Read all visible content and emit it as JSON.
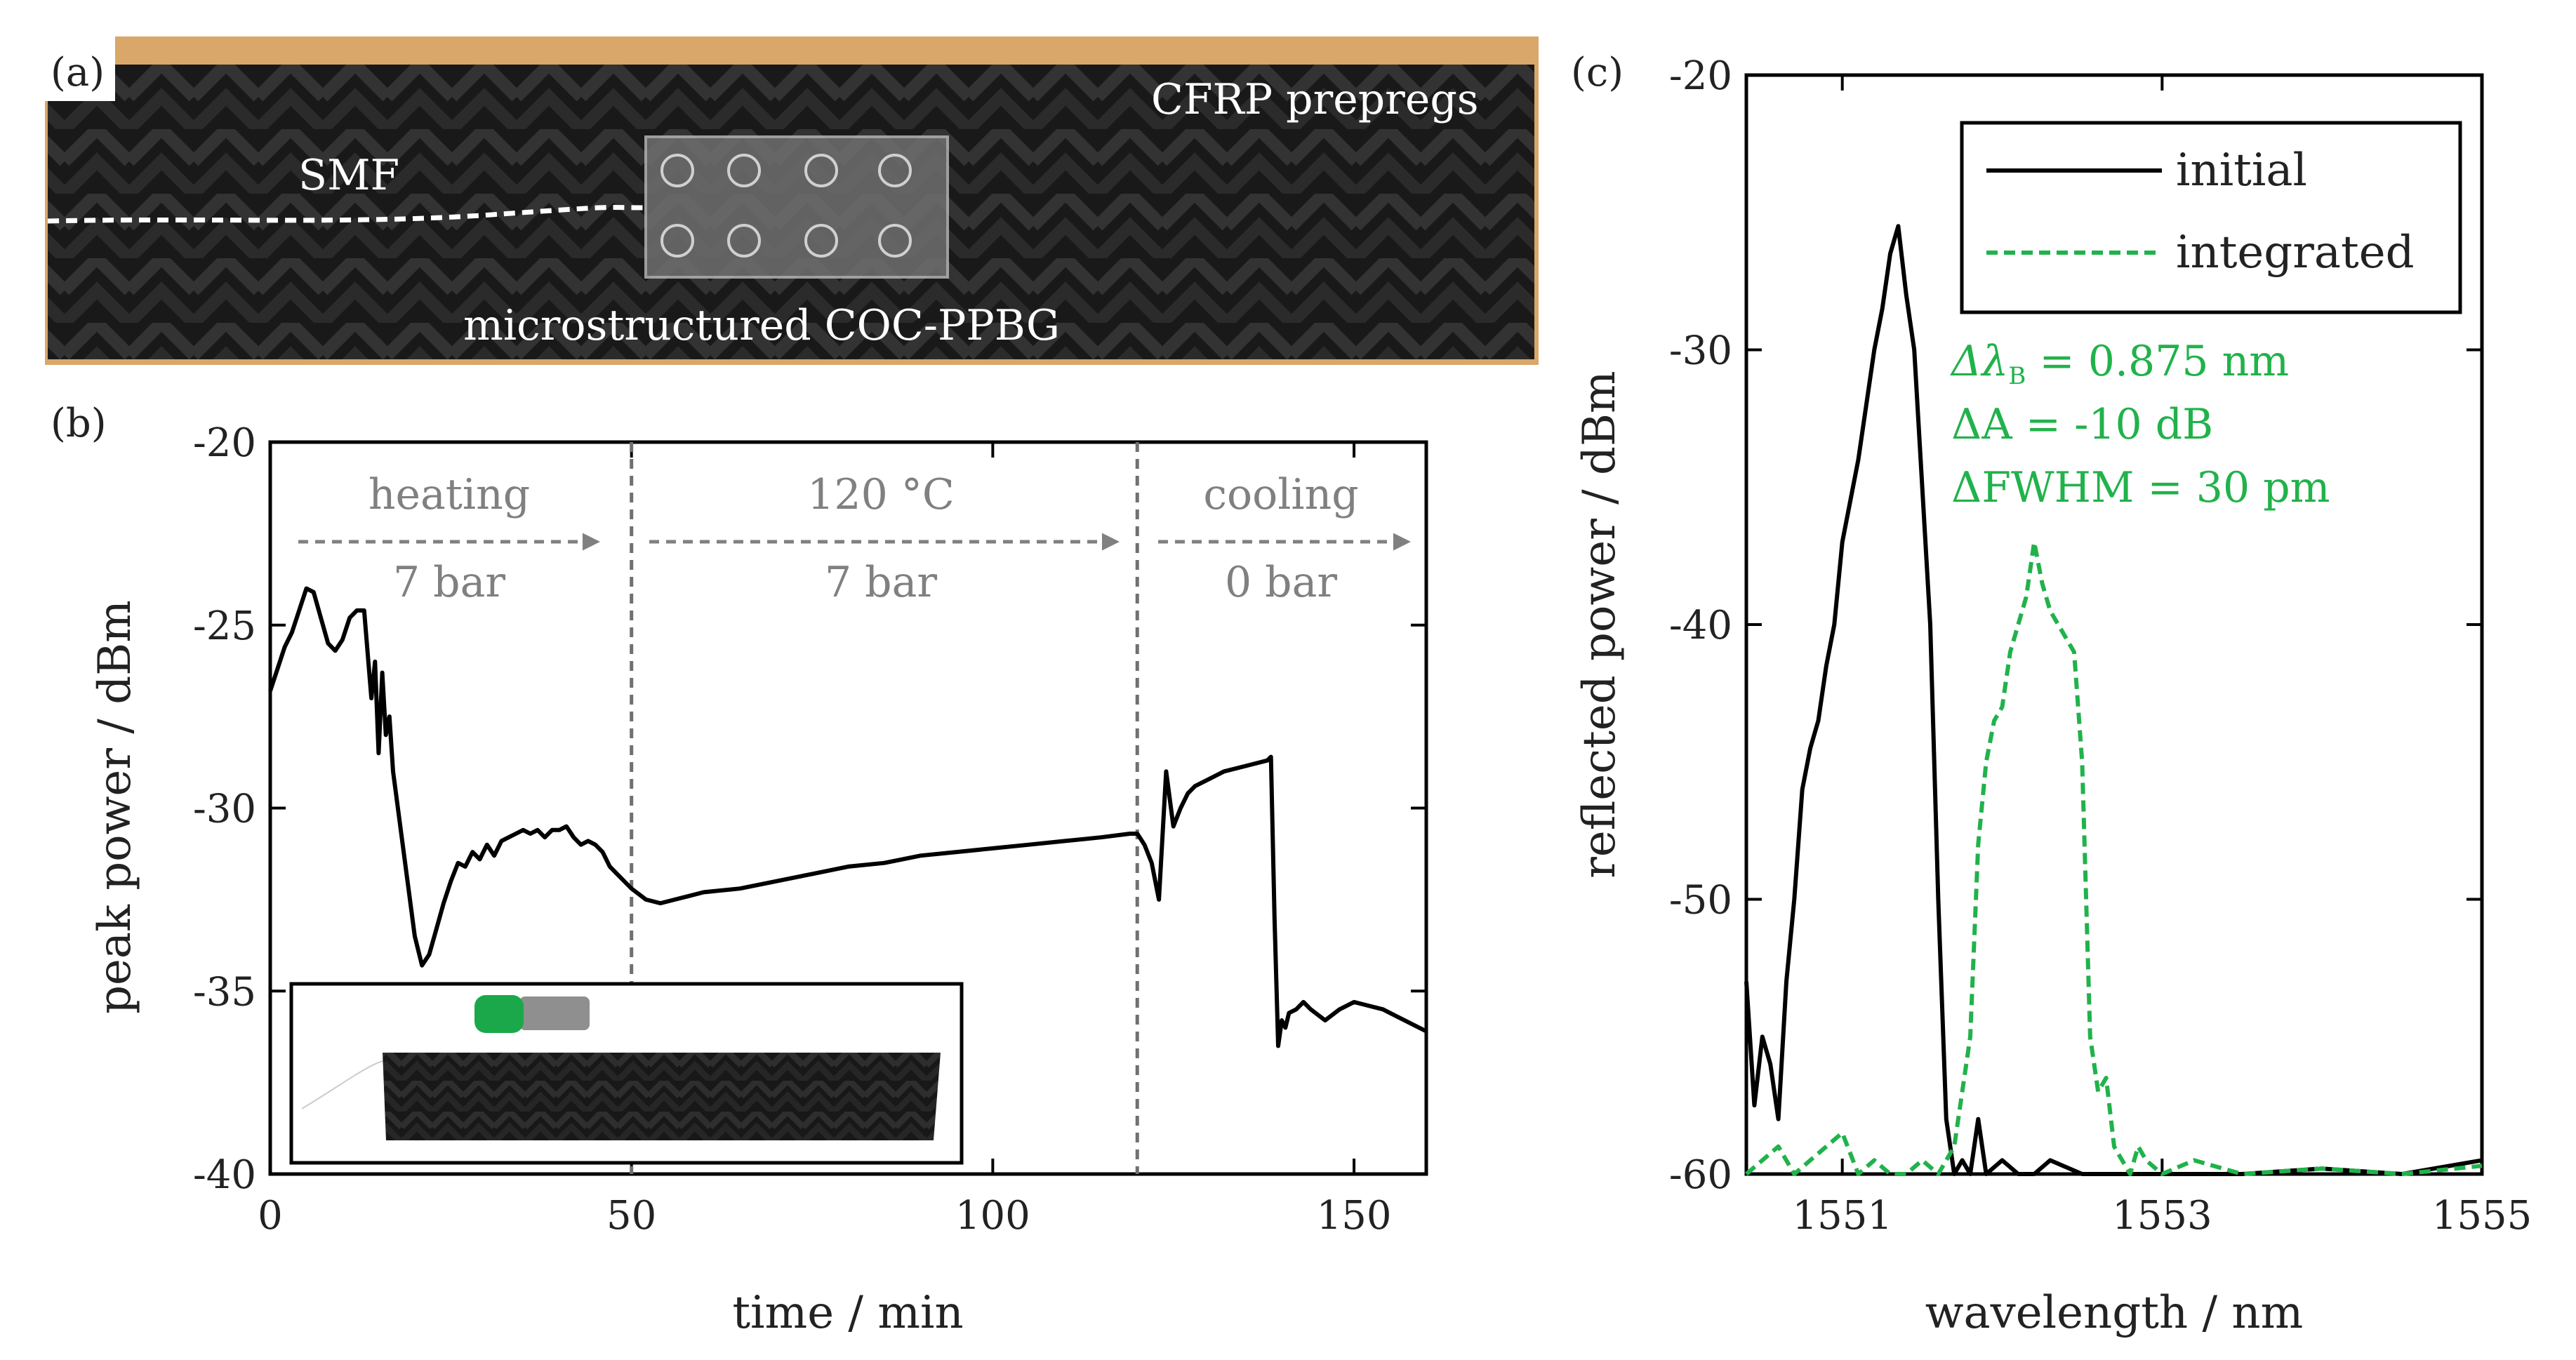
{
  "colors": {
    "initial": "#000000",
    "integrated": "#21b24b",
    "annotation_gray": "#808080",
    "annotation_green": "#21b24b",
    "prepreg": "#202020",
    "tape": "#d9a76a"
  },
  "panel_a": {
    "label": "(a)",
    "photo_labels": {
      "cfrp": "CFRP prepregs",
      "smf": "SMF",
      "sensor": "microstructured COC-PPBG"
    }
  },
  "panel_b_meta": {
    "label": "(b)",
    "phases": [
      {
        "name": "heating",
        "pressure": "7 bar"
      },
      {
        "name": "120 °C",
        "pressure": "7 bar"
      },
      {
        "name": "cooling",
        "pressure": "0 bar"
      }
    ]
  },
  "panel_c_meta": {
    "label": "(c)",
    "annotations": {
      "delta_lambda_prefix": "Δλ",
      "delta_lambda_sub": "B",
      "delta_lambda_value": " = 0.875 nm",
      "delta_a": "ΔA = -10 dB",
      "delta_fwhm": "ΔFWHM = 30 pm"
    }
  },
  "chart_data": [
    {
      "type": "line",
      "panel": "b",
      "xlabel": "time / min",
      "ylabel": "peak power / dBm",
      "xlim": [
        0,
        160
      ],
      "ylim": [
        -40,
        -20
      ],
      "xticks": [
        0,
        50,
        100,
        150
      ],
      "yticks": [
        -20,
        -25,
        -30,
        -35,
        -40
      ],
      "phase_boundaries": [
        50,
        120
      ],
      "series": [
        {
          "name": "peak power",
          "x": [
            0,
            1,
            2,
            3,
            4,
            5,
            6,
            7,
            8,
            9,
            10,
            11,
            12,
            13,
            14,
            14.5,
            15,
            15.5,
            16,
            16.5,
            17,
            18,
            19,
            20,
            21,
            22,
            23,
            24,
            25,
            26,
            27,
            28,
            29,
            30,
            31,
            32,
            33,
            34,
            35,
            36,
            37,
            38,
            39,
            40,
            41,
            42,
            43,
            44,
            45,
            46,
            47,
            48,
            49,
            50,
            52,
            54,
            56,
            58,
            60,
            65,
            70,
            75,
            80,
            85,
            90,
            95,
            100,
            105,
            110,
            115,
            119,
            120,
            121,
            122,
            123,
            124,
            125,
            126,
            127,
            128,
            130,
            132,
            134,
            136,
            138,
            138.5,
            139,
            139.5,
            140,
            140.5,
            141,
            142,
            143,
            144,
            146,
            148,
            150,
            152,
            154,
            156,
            158,
            160
          ],
          "values": [
            -26.8,
            -26.2,
            -25.6,
            -25.2,
            -24.6,
            -24.0,
            -24.1,
            -24.8,
            -25.5,
            -25.7,
            -25.4,
            -24.8,
            -24.6,
            -24.6,
            -27.0,
            -26.0,
            -28.5,
            -26.3,
            -28.0,
            -27.5,
            -29.0,
            -30.5,
            -32.0,
            -33.5,
            -34.3,
            -34.0,
            -33.3,
            -32.6,
            -32.0,
            -31.5,
            -31.6,
            -31.2,
            -31.4,
            -31.0,
            -31.3,
            -30.9,
            -30.8,
            -30.7,
            -30.6,
            -30.7,
            -30.6,
            -30.8,
            -30.6,
            -30.6,
            -30.5,
            -30.8,
            -31.0,
            -30.9,
            -31.0,
            -31.2,
            -31.6,
            -31.8,
            -32.0,
            -32.2,
            -32.5,
            -32.6,
            -32.5,
            -32.4,
            -32.3,
            -32.2,
            -32.0,
            -31.8,
            -31.6,
            -31.5,
            -31.3,
            -31.2,
            -31.1,
            -31.0,
            -30.9,
            -30.8,
            -30.7,
            -30.7,
            -31.0,
            -31.5,
            -32.5,
            -29.0,
            -30.5,
            -30.0,
            -29.6,
            -29.4,
            -29.2,
            -29.0,
            -28.9,
            -28.8,
            -28.7,
            -28.6,
            -33.0,
            -36.5,
            -35.8,
            -36.0,
            -35.6,
            -35.5,
            -35.3,
            -35.5,
            -35.8,
            -35.5,
            -35.3,
            -35.4,
            -35.5,
            -35.7,
            -35.9,
            -36.1
          ]
        }
      ]
    },
    {
      "type": "line",
      "panel": "c",
      "xlabel": "wavelength / nm",
      "ylabel": "reflected power / dBm",
      "xlim": [
        1550.4,
        1555
      ],
      "ylim": [
        -60,
        -20
      ],
      "xticks": [
        1551,
        1553,
        1555
      ],
      "yticks": [
        -20,
        -30,
        -40,
        -50,
        -60
      ],
      "legend": {
        "placement": "top-right",
        "entries": [
          "initial",
          "integrated"
        ]
      },
      "series": [
        {
          "name": "initial",
          "style": "solid",
          "x": [
            1550.4,
            1550.45,
            1550.5,
            1550.55,
            1550.6,
            1550.65,
            1550.7,
            1550.75,
            1550.8,
            1550.85,
            1550.9,
            1550.95,
            1551.0,
            1551.05,
            1551.1,
            1551.15,
            1551.2,
            1551.25,
            1551.3,
            1551.35,
            1551.4,
            1551.45,
            1551.5,
            1551.55,
            1551.6,
            1551.65,
            1551.7,
            1551.75,
            1551.8,
            1551.85,
            1551.9,
            1552.0,
            1552.1,
            1552.2,
            1552.3,
            1552.5,
            1553.0,
            1553.5,
            1554.0,
            1554.5,
            1555.0
          ],
          "values": [
            -53.0,
            -57.5,
            -55.0,
            -56.0,
            -58.0,
            -53.0,
            -50.0,
            -46.0,
            -44.5,
            -43.5,
            -41.5,
            -40.0,
            -37.0,
            -35.5,
            -34.0,
            -32.0,
            -30.0,
            -28.5,
            -26.5,
            -25.5,
            -28.0,
            -30.0,
            -35.0,
            -40.0,
            -50.0,
            -58.0,
            -60.0,
            -59.5,
            -60.0,
            -58.0,
            -60.0,
            -59.5,
            -60.0,
            -60.0,
            -59.5,
            -60.0,
            -60.0,
            -60.0,
            -59.8,
            -60.0,
            -59.5
          ]
        },
        {
          "name": "integrated",
          "style": "dashed",
          "x": [
            1550.4,
            1550.5,
            1550.6,
            1550.7,
            1550.8,
            1550.9,
            1551.0,
            1551.1,
            1551.2,
            1551.3,
            1551.4,
            1551.5,
            1551.6,
            1551.7,
            1551.8,
            1551.85,
            1551.9,
            1551.95,
            1552.0,
            1552.05,
            1552.1,
            1552.15,
            1552.2,
            1552.25,
            1552.3,
            1552.35,
            1552.4,
            1552.45,
            1552.5,
            1552.55,
            1552.6,
            1552.65,
            1552.7,
            1552.75,
            1552.8,
            1552.85,
            1552.9,
            1553.0,
            1553.2,
            1553.5,
            1554.0,
            1554.5,
            1555.0
          ],
          "values": [
            -60.0,
            -59.5,
            -59.0,
            -60.0,
            -59.5,
            -59.0,
            -58.5,
            -60.0,
            -59.5,
            -60.0,
            -60.0,
            -59.5,
            -60.0,
            -59.0,
            -55.0,
            -48.0,
            -45.0,
            -43.5,
            -43.0,
            -41.0,
            -40.0,
            -39.0,
            -37.0,
            -38.5,
            -39.5,
            -40.0,
            -40.5,
            -41.0,
            -45.0,
            -55.0,
            -57.0,
            -56.5,
            -59.0,
            -59.5,
            -60.0,
            -59.0,
            -59.5,
            -60.0,
            -59.5,
            -60.0,
            -59.8,
            -60.0,
            -59.7
          ]
        }
      ]
    }
  ]
}
